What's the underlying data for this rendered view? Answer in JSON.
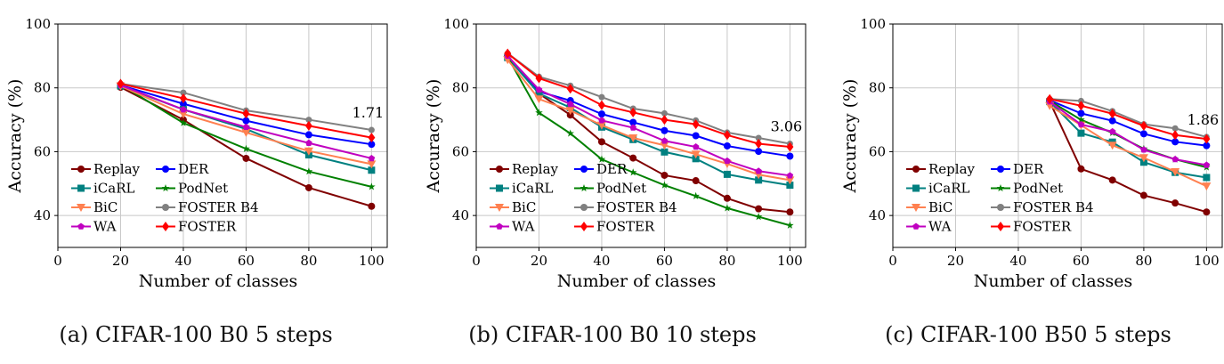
{
  "colors": {
    "Replay": "#800000",
    "DER": "#0000ff",
    "iCaRL": "#008080",
    "PodNet": "#008000",
    "BiC": "#ff8050",
    "FOSTER B4": "#808080",
    "WA": "#c000c0",
    "FOSTER": "#ff0000"
  },
  "markers": {
    "Replay": "circle",
    "DER": "circle",
    "iCaRL": "square",
    "PodNet": "star",
    "BiC": "triangle-down",
    "FOSTER B4": "circle",
    "WA": "pentagon",
    "FOSTER": "diamond"
  },
  "legend_order": [
    "Replay",
    "DER",
    "iCaRL",
    "PodNet",
    "BiC",
    "FOSTER B4",
    "WA",
    "FOSTER"
  ],
  "chart_data": [
    {
      "type": "line",
      "caption": "(a) CIFAR-100 B0 5 steps",
      "xlabel": "Number of classes",
      "ylabel": "Accuracy (%)",
      "xlim": [
        0,
        105
      ],
      "ylim": [
        30,
        100
      ],
      "xticks": [
        0,
        20,
        40,
        60,
        80,
        100
      ],
      "yticks": [
        40,
        60,
        80,
        100
      ],
      "grid": true,
      "legend": "lower-left",
      "annotation": "1.71",
      "x": [
        20,
        40,
        60,
        80,
        100
      ],
      "series": [
        {
          "name": "Replay",
          "values": [
            80.2,
            70.0,
            57.9,
            48.7,
            42.9
          ]
        },
        {
          "name": "DER",
          "values": [
            80.8,
            75.0,
            69.7,
            65.3,
            62.3
          ]
        },
        {
          "name": "iCaRL",
          "values": [
            80.6,
            73.2,
            67.1,
            59.0,
            54.2
          ]
        },
        {
          "name": "PodNet",
          "values": [
            81.0,
            69.0,
            60.9,
            53.8,
            49.0
          ]
        },
        {
          "name": "BiC",
          "values": [
            80.6,
            71.8,
            66.0,
            60.2,
            56.1
          ]
        },
        {
          "name": "FOSTER B4",
          "values": [
            81.3,
            78.5,
            72.9,
            70.0,
            66.8
          ]
        },
        {
          "name": "WA",
          "values": [
            80.8,
            73.2,
            67.7,
            62.7,
            57.9
          ]
        },
        {
          "name": "FOSTER",
          "values": [
            81.3,
            76.7,
            71.9,
            68.1,
            64.4
          ]
        }
      ]
    },
    {
      "type": "line",
      "caption": "(b) CIFAR-100 B0 10 steps",
      "xlabel": "Number of classes",
      "ylabel": "Accuracy (%)",
      "xlim": [
        0,
        105
      ],
      "ylim": [
        30,
        100
      ],
      "xticks": [
        0,
        20,
        40,
        60,
        80,
        100
      ],
      "yticks": [
        40,
        60,
        80,
        100
      ],
      "grid": true,
      "legend": "lower-left",
      "annotation": "3.06",
      "x": [
        10,
        20,
        30,
        40,
        50,
        60,
        70,
        80,
        90,
        100
      ],
      "series": [
        {
          "name": "Replay",
          "values": [
            90.0,
            78.2,
            71.5,
            63.1,
            58.0,
            52.6,
            50.9,
            45.4,
            42.1,
            41.1
          ]
        },
        {
          "name": "DER",
          "values": [
            89.7,
            78.8,
            76.0,
            71.8,
            69.2,
            66.6,
            65.0,
            61.8,
            60.1,
            58.6
          ]
        },
        {
          "name": "iCaRL",
          "values": [
            89.5,
            78.2,
            73.8,
            67.7,
            63.8,
            59.9,
            57.8,
            52.9,
            51.1,
            49.5
          ]
        },
        {
          "name": "PodNet",
          "values": [
            89.7,
            72.2,
            65.7,
            57.6,
            53.5,
            49.5,
            46.1,
            42.3,
            39.6,
            36.9
          ]
        },
        {
          "name": "BiC",
          "values": [
            88.8,
            76.5,
            72.9,
            68.3,
            64.3,
            62.0,
            59.2,
            56.2,
            52.8,
            51.1
          ]
        },
        {
          "name": "FOSTER B4",
          "values": [
            90.8,
            83.5,
            80.7,
            77.1,
            73.5,
            72.0,
            69.8,
            66.0,
            64.3,
            62.5
          ]
        },
        {
          "name": "WA",
          "values": [
            90.0,
            79.4,
            74.9,
            69.8,
            67.5,
            63.4,
            61.5,
            57.1,
            53.9,
            52.5
          ]
        },
        {
          "name": "FOSTER",
          "values": [
            90.8,
            83.0,
            79.7,
            74.6,
            72.3,
            70.0,
            68.6,
            65.2,
            62.5,
            61.5
          ]
        }
      ]
    },
    {
      "type": "line",
      "caption": "(c) CIFAR-100 B50 5 steps",
      "xlabel": "Number of classes",
      "ylabel": "Accuracy (%)",
      "xlim": [
        0,
        105
      ],
      "ylim": [
        30,
        100
      ],
      "xticks": [
        0,
        20,
        40,
        60,
        80,
        100
      ],
      "yticks": [
        40,
        60,
        80,
        100
      ],
      "grid": true,
      "legend": "lower-left",
      "annotation": "1.86",
      "x": [
        50,
        60,
        70,
        80,
        90,
        100
      ],
      "series": [
        {
          "name": "Replay",
          "values": [
            75.7,
            54.6,
            51.1,
            46.3,
            43.9,
            41.1
          ]
        },
        {
          "name": "DER",
          "values": [
            76.1,
            72.0,
            69.7,
            65.6,
            63.1,
            61.9
          ]
        },
        {
          "name": "iCaRL",
          "values": [
            75.7,
            65.8,
            63.0,
            56.7,
            53.5,
            51.9
          ]
        },
        {
          "name": "PodNet",
          "values": [
            75.9,
            70.0,
            65.9,
            60.9,
            57.6,
            55.1
          ]
        },
        {
          "name": "BiC",
          "values": [
            74.4,
            68.3,
            62.0,
            58.1,
            53.7,
            49.2
          ]
        },
        {
          "name": "FOSTER B4",
          "values": [
            76.5,
            75.9,
            72.7,
            68.6,
            67.3,
            64.6
          ]
        },
        {
          "name": "WA",
          "values": [
            75.7,
            68.5,
            66.3,
            60.6,
            57.6,
            55.8
          ]
        },
        {
          "name": "FOSTER",
          "values": [
            76.5,
            74.4,
            71.9,
            68.1,
            65.2,
            64.0
          ]
        }
      ]
    }
  ]
}
